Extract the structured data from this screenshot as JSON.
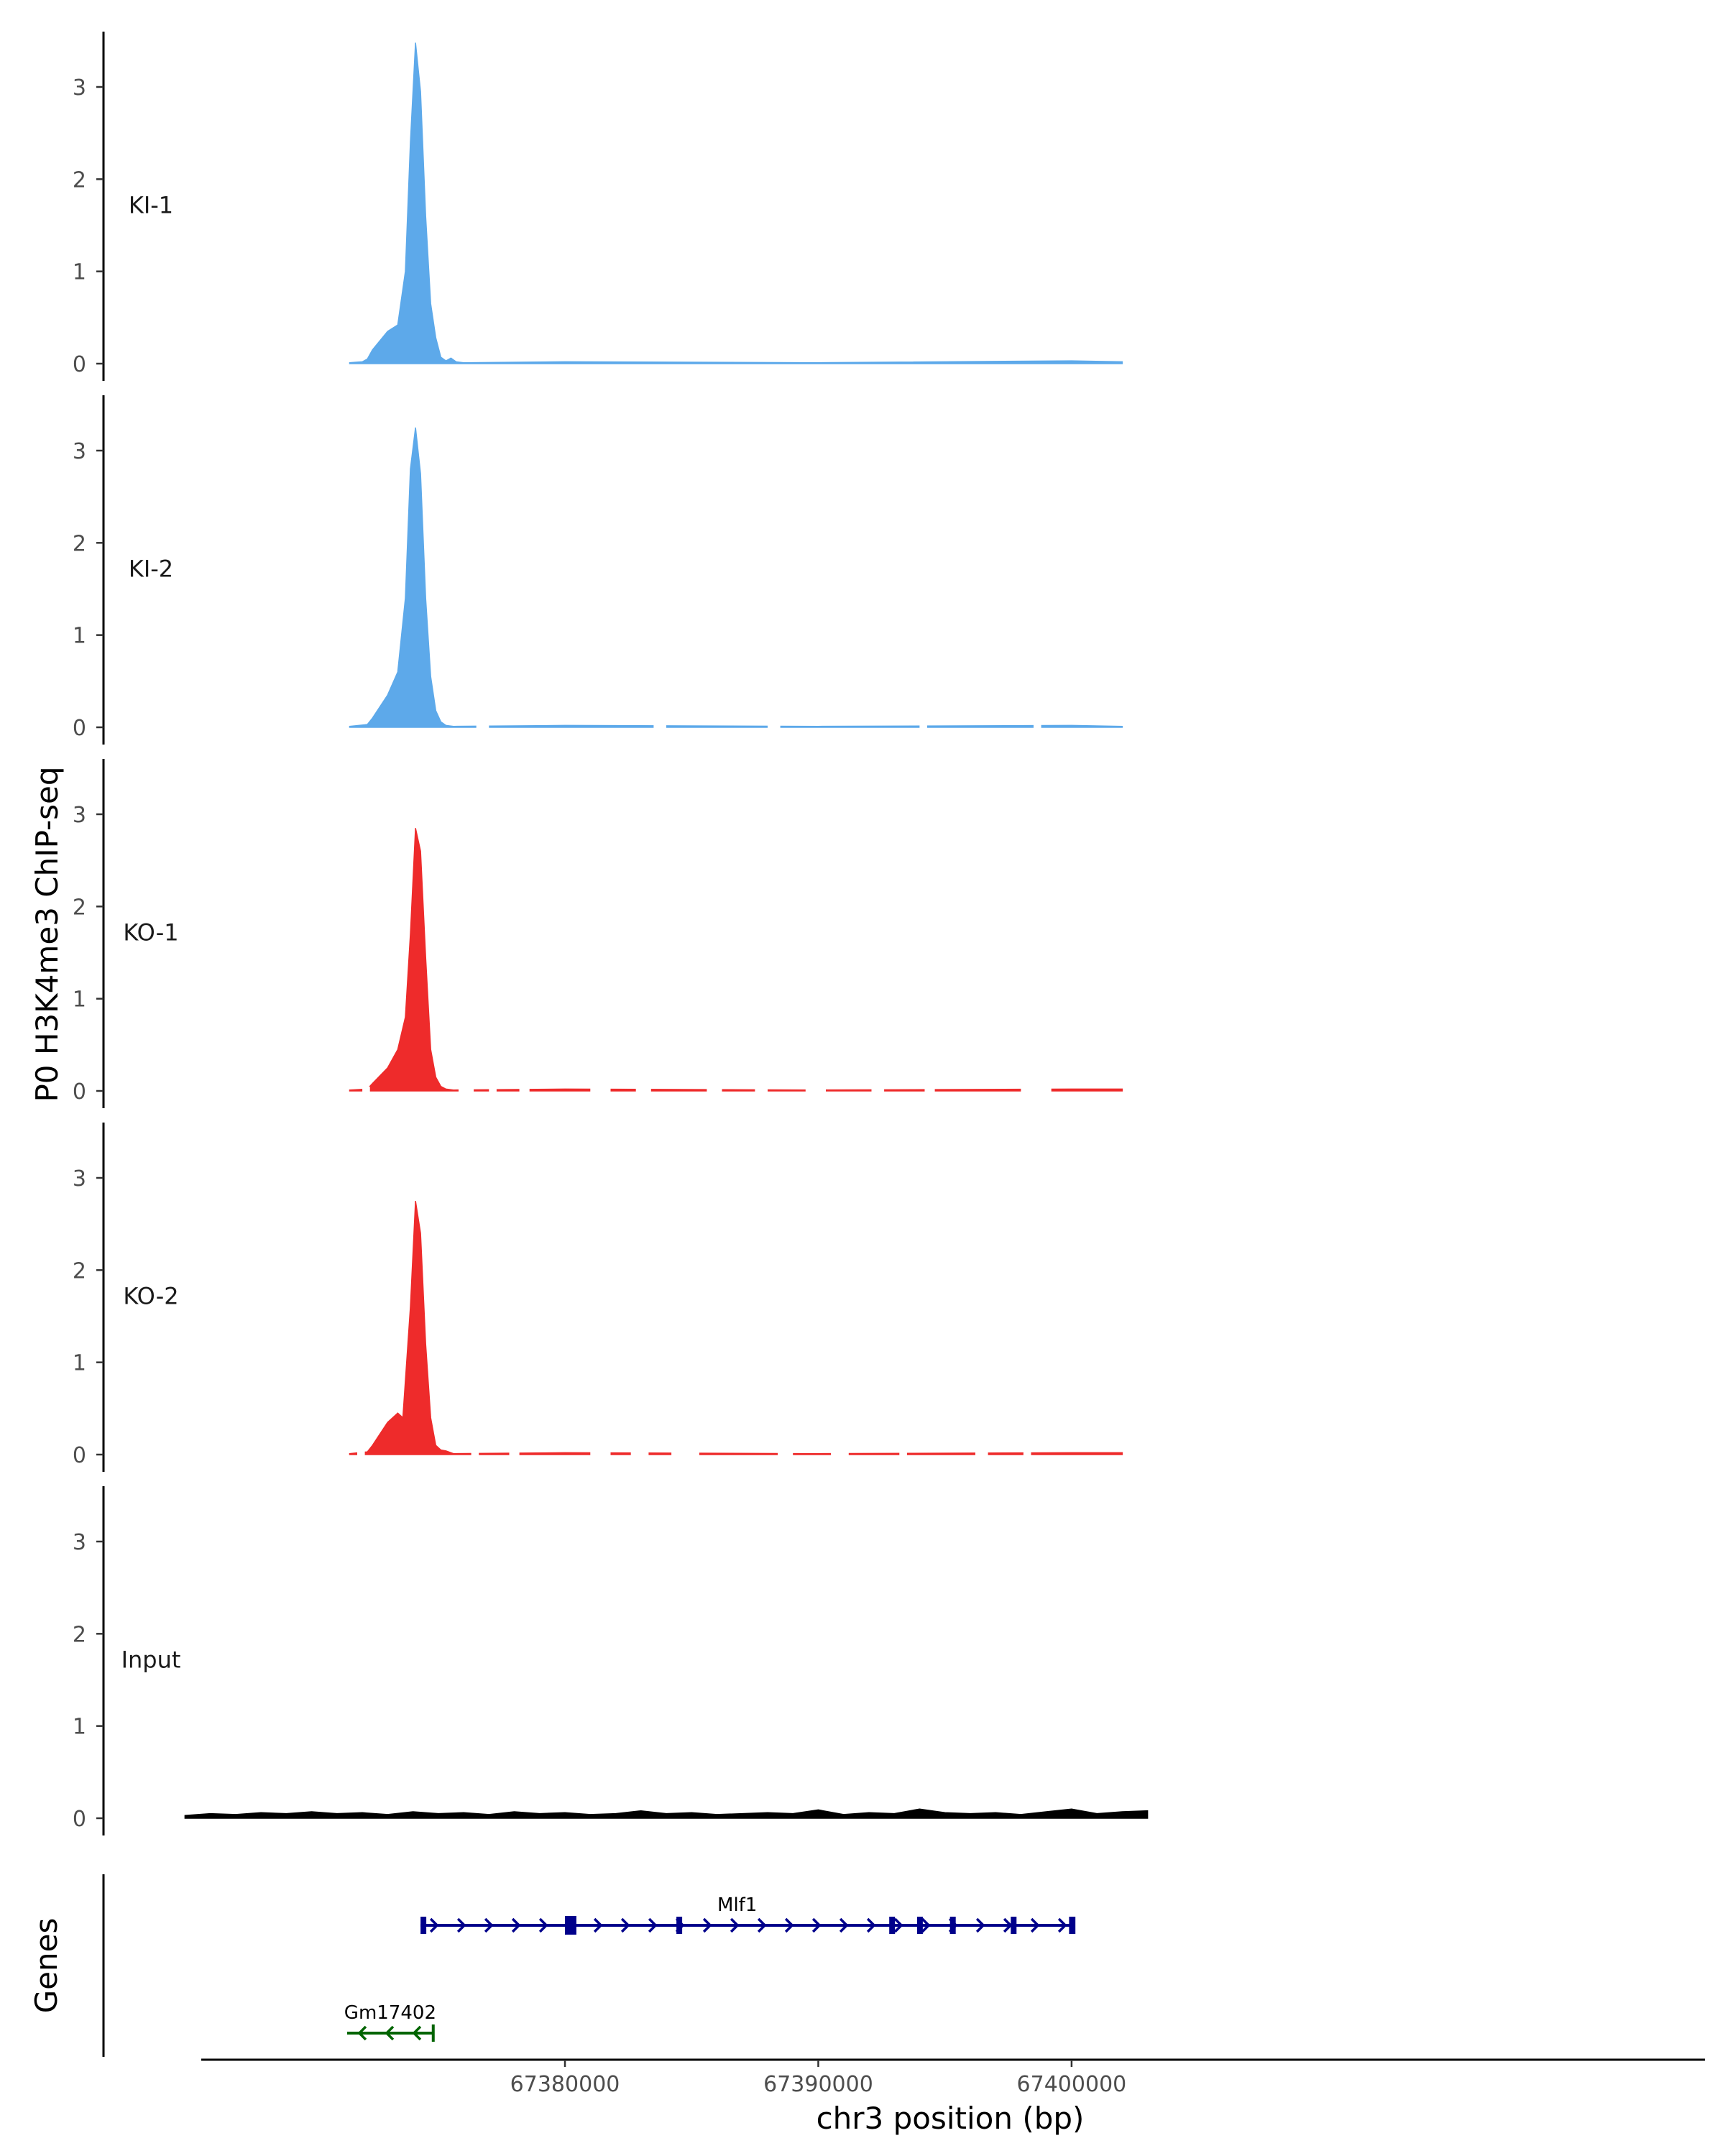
{
  "chart_data": {
    "type": "area",
    "ylabel": "P0 H3K4me3 ChIP-seq",
    "xlabel": "chr3 position (bp)",
    "xlim": [
      67365500,
      67425000
    ],
    "ylim": [
      0,
      3.6
    ],
    "yticks": [
      0,
      1,
      2,
      3
    ],
    "xticks": [
      67380000,
      67390000,
      67400000
    ],
    "xtick_labels": [
      "67380000",
      "67390000",
      "67400000"
    ],
    "genes_label": "Genes",
    "tracks": [
      {
        "name": "KI-1",
        "color": "#5da9ea",
        "baseline": 0.02,
        "x": [
          67371500,
          67372000,
          67372200,
          67372400,
          67373000,
          67373400,
          67373700,
          67373900,
          67374100,
          67374300,
          67374500,
          67374700,
          67374900,
          67375100,
          67375300,
          67375500,
          67375700,
          67376000,
          67380000,
          67390000,
          67400000,
          67402000
        ],
        "values": [
          0.01,
          0.02,
          0.05,
          0.15,
          0.35,
          0.42,
          1.0,
          2.4,
          3.48,
          2.95,
          1.6,
          0.65,
          0.28,
          0.07,
          0.03,
          0.06,
          0.02,
          0.01,
          0.02,
          0.01,
          0.03,
          0.02
        ]
      },
      {
        "name": "KI-2",
        "color": "#5da9ea",
        "baseline": 0.02,
        "x": [
          67371500,
          67372200,
          67372400,
          67373000,
          67373400,
          67373700,
          67373900,
          67374100,
          67374300,
          67374500,
          67374700,
          67374900,
          67375100,
          67375300,
          67375600,
          67380000,
          67390000,
          67400000,
          67402000
        ],
        "values": [
          0.01,
          0.03,
          0.1,
          0.35,
          0.6,
          1.4,
          2.8,
          3.25,
          2.75,
          1.4,
          0.55,
          0.18,
          0.06,
          0.02,
          0.01,
          0.02,
          0.01,
          0.02,
          0.01
        ],
        "gaps": [
          [
            67376500,
            67377000
          ],
          [
            67383500,
            67384000
          ],
          [
            67388000,
            67388500
          ],
          [
            67394000,
            67394300
          ],
          [
            67398500,
            67398800
          ]
        ]
      },
      {
        "name": "KO-1",
        "color": "#ee2b2b",
        "baseline": 0.02,
        "x": [
          67371500,
          67372200,
          67372400,
          67373000,
          67373400,
          67373700,
          67373900,
          67374100,
          67374300,
          67374500,
          67374700,
          67374900,
          67375100,
          67375300,
          67375600,
          67380000,
          67390000,
          67400000,
          67402000
        ],
        "values": [
          0.01,
          0.02,
          0.08,
          0.25,
          0.45,
          0.8,
          1.7,
          2.85,
          2.6,
          1.45,
          0.45,
          0.15,
          0.05,
          0.02,
          0.01,
          0.02,
          0.01,
          0.02,
          0.02
        ],
        "gaps": [
          [
            67372000,
            67372300
          ],
          [
            67375800,
            67376400
          ],
          [
            67377000,
            67377300
          ],
          [
            67378200,
            67378600
          ],
          [
            67381000,
            67381800
          ],
          [
            67382800,
            67383400
          ],
          [
            67385600,
            67386200
          ],
          [
            67387500,
            67388000
          ],
          [
            67389500,
            67390300
          ],
          [
            67392100,
            67392600
          ],
          [
            67394200,
            67394600
          ],
          [
            67398000,
            67399200
          ]
        ]
      },
      {
        "name": "KO-2",
        "color": "#ee2b2b",
        "baseline": 0.02,
        "x": [
          67371500,
          67372200,
          67372400,
          67373000,
          67373400,
          67373600,
          67373900,
          67374100,
          67374300,
          67374500,
          67374700,
          67374900,
          67375100,
          67375300,
          67375600,
          67380000,
          67390000,
          67400000,
          67402000
        ],
        "values": [
          0.01,
          0.03,
          0.1,
          0.35,
          0.45,
          0.4,
          1.6,
          2.75,
          2.4,
          1.2,
          0.4,
          0.1,
          0.05,
          0.04,
          0.01,
          0.02,
          0.01,
          0.02,
          0.02
        ],
        "gaps": [
          [
            67371800,
            67372100
          ],
          [
            67376300,
            67376600
          ],
          [
            67377800,
            67378200
          ],
          [
            67381000,
            67381800
          ],
          [
            67382600,
            67383300
          ],
          [
            67384200,
            67385300
          ],
          [
            67388400,
            67389000
          ],
          [
            67390500,
            67391200
          ],
          [
            67393200,
            67393500
          ],
          [
            67396200,
            67396700
          ],
          [
            67398100,
            67398400
          ]
        ]
      },
      {
        "name": "Input",
        "color": "#000000",
        "baseline": 0.0,
        "x": [
          67365000,
          67366000,
          67367000,
          67368000,
          67369000,
          67370000,
          67371000,
          67372000,
          67373000,
          67374000,
          67375000,
          67376000,
          67377000,
          67378000,
          67379000,
          67380000,
          67381000,
          67382000,
          67383000,
          67384000,
          67385000,
          67386000,
          67387000,
          67388000,
          67389000,
          67390000,
          67391000,
          67392000,
          67393000,
          67394000,
          67395000,
          67396000,
          67397000,
          67398000,
          67399000,
          67400000,
          67401000,
          67402000,
          67403000
        ],
        "values": [
          0.03,
          0.05,
          0.04,
          0.06,
          0.05,
          0.07,
          0.05,
          0.06,
          0.04,
          0.07,
          0.05,
          0.06,
          0.04,
          0.07,
          0.05,
          0.06,
          0.04,
          0.05,
          0.08,
          0.05,
          0.06,
          0.04,
          0.05,
          0.06,
          0.05,
          0.09,
          0.04,
          0.06,
          0.05,
          0.1,
          0.06,
          0.05,
          0.06,
          0.04,
          0.07,
          0.1,
          0.05,
          0.07,
          0.08
        ]
      }
    ],
    "genes": [
      {
        "name": "Mlf1",
        "color": "#00008b",
        "start": 67374300,
        "end": 67400000,
        "strand": "+",
        "row": 0,
        "exons": [
          [
            67374300,
            67374500
          ],
          [
            67380000,
            67380450
          ],
          [
            67384400,
            67384600
          ],
          [
            67392800,
            67392950
          ],
          [
            67393900,
            67394000
          ],
          [
            67395200,
            67395350
          ],
          [
            67397600,
            67397700
          ],
          [
            67399900,
            67400150
          ]
        ]
      },
      {
        "name": "Gm17402",
        "color": "#006400",
        "start": 67371400,
        "end": 67374800,
        "strand": "-",
        "row": 1,
        "exons": []
      }
    ]
  }
}
